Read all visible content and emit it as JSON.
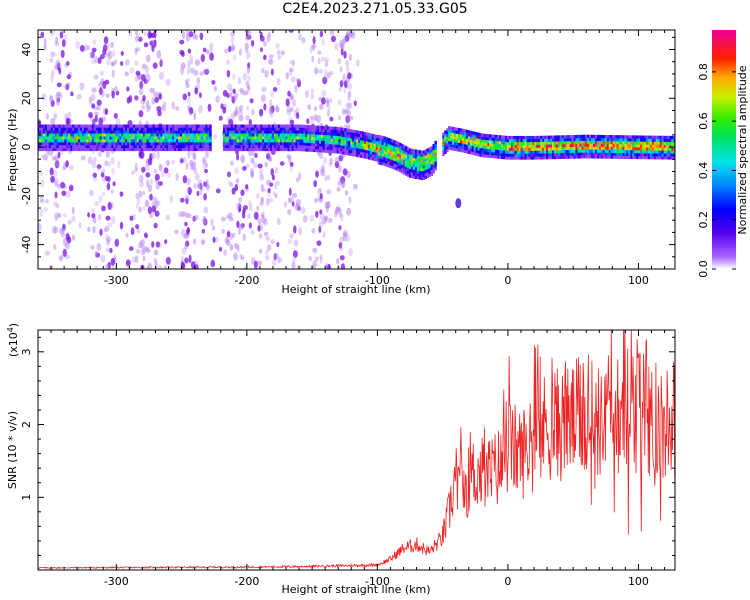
{
  "title": "C2E4.2023.271.05.33.G05",
  "colors": {
    "snr_line": "#ee2222",
    "band_low": "#5500dd",
    "noise": "#9933ee"
  },
  "chart_data": [
    {
      "type": "heatmap",
      "title": "C2E4.2023.271.05.33.G05",
      "xlabel": "Height of straight line (km)",
      "ylabel": "Frequency (Hz)",
      "xlim": [
        -360,
        128
      ],
      "ylim": [
        -50,
        48
      ],
      "xticks": [
        -300,
        -200,
        -100,
        0,
        100
      ],
      "yticks": [
        -40,
        -20,
        0,
        20,
        40
      ],
      "colorbar": {
        "label": "Normalized spectral amplitude",
        "range": [
          0.0,
          0.97
        ],
        "ticks": [
          "0.0",
          "0.2",
          "0.4",
          "0.6",
          "0.8"
        ],
        "tick_values": [
          0.0,
          0.2,
          0.4,
          0.6,
          0.8
        ]
      },
      "band_center": [
        [
          -360,
          4
        ],
        [
          -250,
          4
        ],
        [
          -200,
          4
        ],
        [
          -160,
          4
        ],
        [
          -130,
          3
        ],
        [
          -110,
          1
        ],
        [
          -95,
          -1
        ],
        [
          -85,
          -3
        ],
        [
          -75,
          -6
        ],
        [
          -65,
          -7
        ],
        [
          -58,
          -5
        ],
        [
          -52,
          0
        ],
        [
          -45,
          4
        ],
        [
          -35,
          3
        ],
        [
          -20,
          1
        ],
        [
          0,
          0
        ],
        [
          20,
          0
        ],
        [
          60,
          0.5
        ],
        [
          128,
          0
        ]
      ]
    },
    {
      "type": "line",
      "xlabel": "Height of straight line (km)",
      "ylabel": "SNR (10 * v/v)",
      "multiplier_label": "(x10",
      "multiplier_exp": "4",
      "multiplier_close": ")",
      "xlim": [
        -360,
        128
      ],
      "ylim": [
        0,
        3.3
      ],
      "xticks": [
        -300,
        -200,
        -100,
        0,
        100
      ],
      "yticks": [
        1,
        2,
        3
      ],
      "series": [
        {
          "name": "SNR",
          "envelope": [
            [
              -360,
              0.03
            ],
            [
              -200,
              0.04
            ],
            [
              -150,
              0.05
            ],
            [
              -100,
              0.07
            ],
            [
              -90,
              0.15
            ],
            [
              -80,
              0.3
            ],
            [
              -70,
              0.35
            ],
            [
              -60,
              0.25
            ],
            [
              -50,
              0.45
            ],
            [
              -45,
              0.8
            ],
            [
              -40,
              1.3
            ],
            [
              -35,
              1.1
            ],
            [
              -25,
              1.35
            ],
            [
              -15,
              1.3
            ],
            [
              -5,
              1.45
            ],
            [
              0,
              1.7
            ],
            [
              10,
              1.6
            ],
            [
              20,
              1.75
            ],
            [
              30,
              2.0
            ],
            [
              40,
              2.0
            ],
            [
              50,
              2.05
            ],
            [
              60,
              2.15
            ],
            [
              70,
              2.0
            ],
            [
              80,
              2.2
            ],
            [
              90,
              2.1
            ],
            [
              100,
              2.2
            ],
            [
              110,
              2.05
            ],
            [
              128,
              2.1
            ]
          ]
        }
      ]
    }
  ]
}
